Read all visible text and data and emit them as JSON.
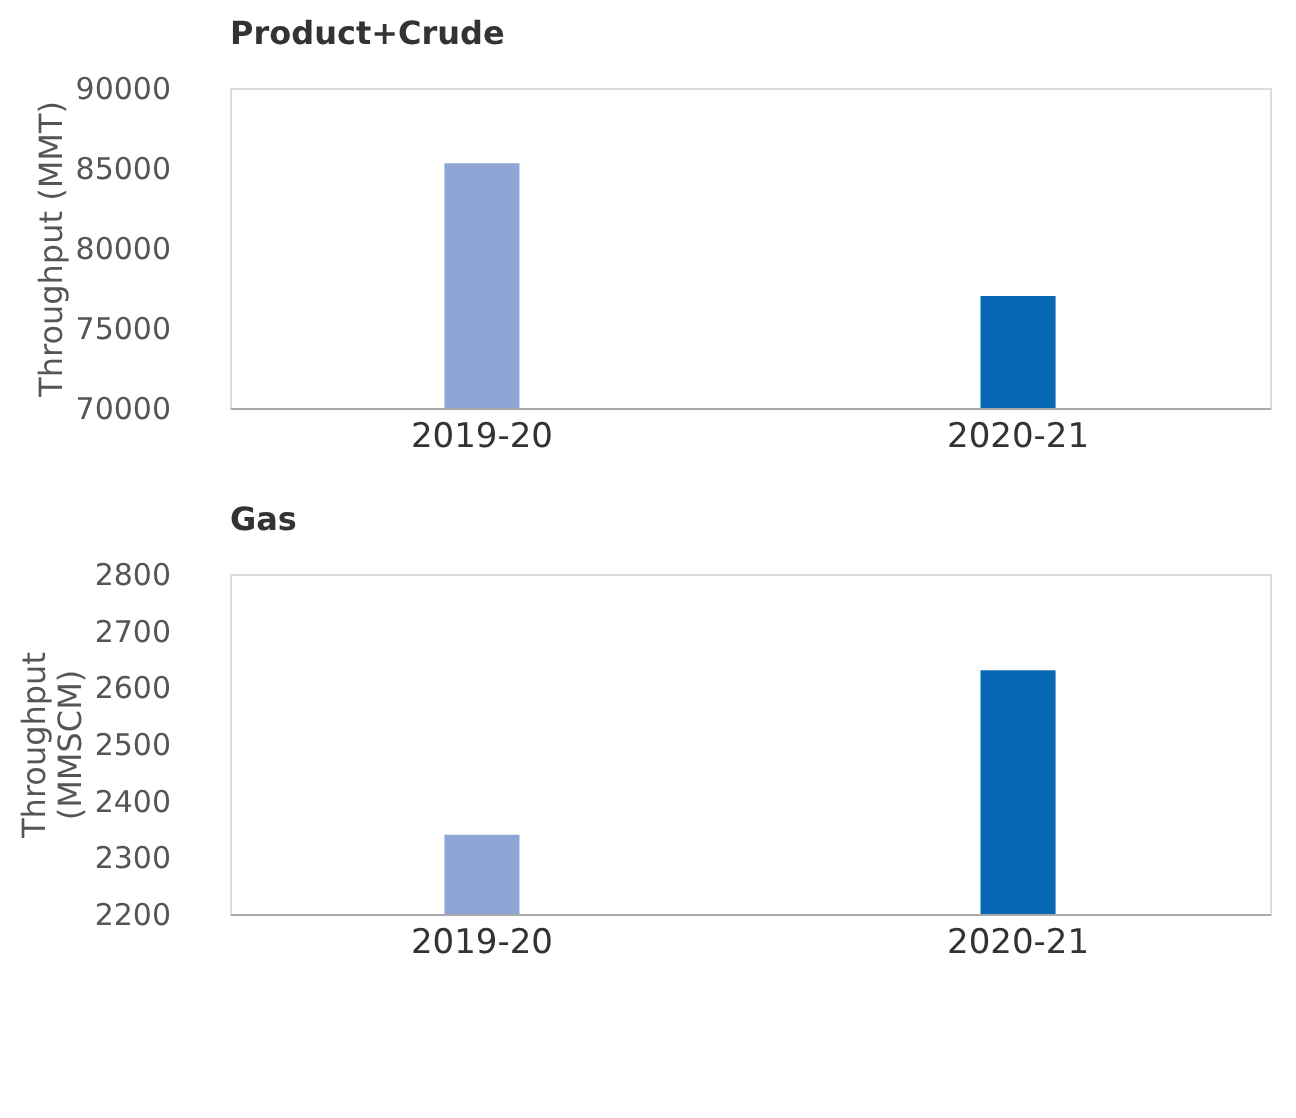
{
  "chart_data": [
    {
      "type": "bar",
      "title": "Product+Crude",
      "ylabel": "Throughput (MMT)",
      "categories": [
        "2019-20",
        "2020-21"
      ],
      "values": [
        85300,
        77000
      ],
      "colors": [
        "#8ea5d6",
        "#0868b4"
      ],
      "ylim": [
        70000,
        90000
      ],
      "yticks": [
        70000,
        75000,
        80000,
        85000,
        90000
      ],
      "grid": false,
      "legend": false
    },
    {
      "type": "bar",
      "title": "Gas",
      "ylabel": "Throughput (MMSCM)",
      "categories": [
        "2019-20",
        "2020-21"
      ],
      "values": [
        2340,
        2630
      ],
      "colors": [
        "#8ea5d6",
        "#0868b4"
      ],
      "ylim": [
        2200,
        2800
      ],
      "yticks": [
        2200,
        2300,
        2400,
        2500,
        2600,
        2700,
        2800
      ],
      "grid": false,
      "legend": false
    }
  ]
}
